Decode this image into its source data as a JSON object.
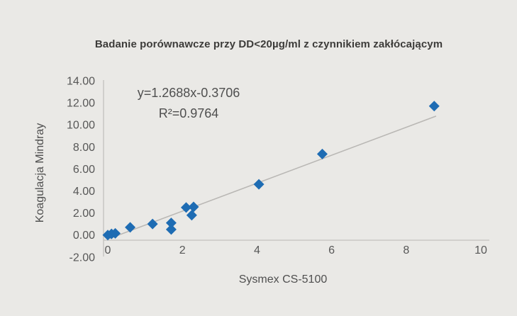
{
  "chart_data": {
    "type": "scatter",
    "title": "Badanie porównawcze przy DD<20µg/ml z czynnikiem zakłócającym",
    "xlabel": "Sysmex CS-5100",
    "ylabel": "Koagulacja Mindray",
    "xlim": [
      0,
      10
    ],
    "ylim": [
      -2,
      14
    ],
    "grid": false,
    "legend": "none",
    "x_ticks": {
      "values": [
        0,
        2,
        4,
        6,
        8,
        10
      ],
      "labels": [
        "0",
        "2",
        "4",
        "6",
        "8",
        "10"
      ]
    },
    "y_ticks": {
      "values": [
        14,
        12,
        10,
        8,
        6,
        4,
        2,
        0,
        -2
      ],
      "labels": [
        "14.00",
        "12.00",
        "10.00",
        "8.00",
        "6.00",
        "4.00",
        "2.00",
        "0.00",
        "-2.00"
      ]
    },
    "points": [
      [
        0.0,
        0.0
      ],
      [
        0.1,
        0.1
      ],
      [
        0.2,
        0.15
      ],
      [
        0.6,
        0.7
      ],
      [
        1.2,
        1.0
      ],
      [
        1.7,
        1.1
      ],
      [
        1.7,
        0.5
      ],
      [
        2.1,
        2.5
      ],
      [
        2.3,
        2.55
      ],
      [
        2.25,
        1.8
      ],
      [
        4.05,
        4.6
      ],
      [
        5.75,
        7.35
      ],
      [
        8.75,
        11.7
      ]
    ],
    "trendline": {
      "slope": 1.2688,
      "intercept": -0.3706,
      "x_start": 0.05,
      "x_end": 8.8,
      "equation": "y=1.2688x-0.3706",
      "r_squared": "R²=0.9764"
    },
    "colors": {
      "point": "#1e6cb3",
      "trendline": "#b9b7b4",
      "axis_line": "#c3c1be",
      "tick_text": "#575757",
      "title_text": "#3d3c3a",
      "background": "#eae9e6"
    }
  }
}
